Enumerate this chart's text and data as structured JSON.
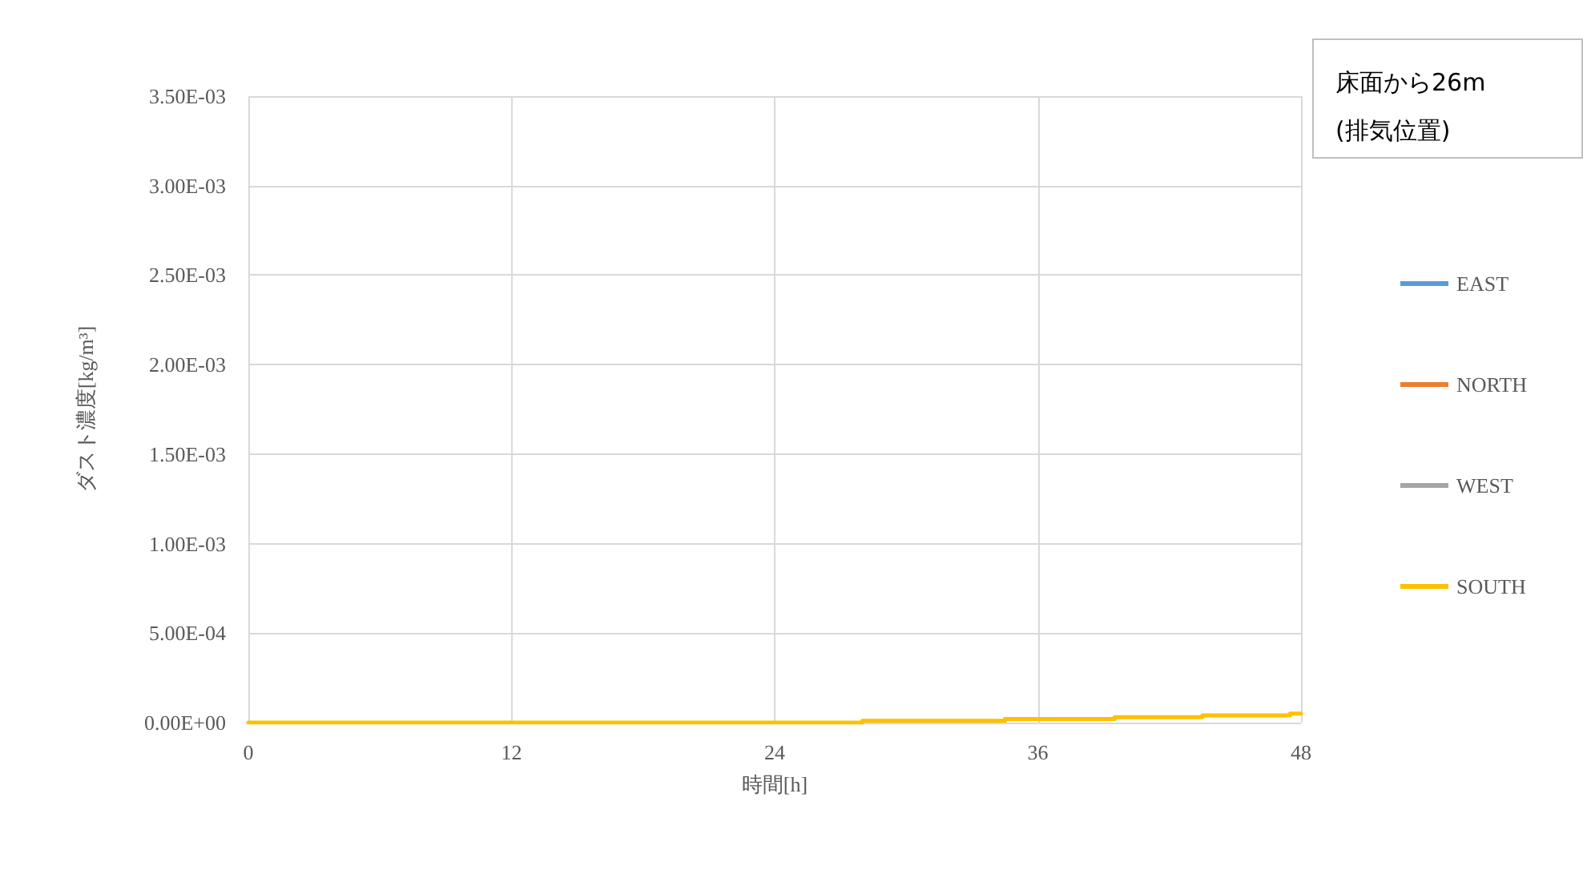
{
  "chart_data": {
    "type": "step",
    "xlabel": "時間[h]",
    "ylabel": "ダスト濃度[kg/m³]",
    "annotations": [
      "床面から26m\n(排気位置)"
    ],
    "series": [
      {
        "name": "EAST",
        "color": "#5b9bd5",
        "values": [
          null,
          null,
          null,
          null,
          null,
          null,
          null
        ]
      },
      {
        "name": "NORTH",
        "color": "#ed7d31",
        "values": [
          null,
          null,
          null,
          null,
          null,
          null,
          null
        ]
      },
      {
        "name": "WEST",
        "color": "#a5a5a5",
        "values": [
          null,
          null,
          null,
          null,
          null,
          null,
          null
        ]
      },
      {
        "name": "SOUTH",
        "color": "#ffc000",
        "x": [
          0,
          28,
          34.5,
          39.5,
          43.5,
          47.5,
          48
        ],
        "values": [
          0,
          1e-05,
          2e-05,
          3e-05,
          4e-05,
          5e-05,
          5e-05
        ]
      }
    ],
    "xlim": [
      0,
      48
    ],
    "xticks": [
      0,
      12,
      24,
      36,
      48
    ],
    "ylim": [
      0,
      0.0035
    ],
    "yticks": [
      {
        "value": 0,
        "label": "0.00E+00"
      },
      {
        "value": 0.0005,
        "label": "5.00E-04"
      },
      {
        "value": 0.001,
        "label": "1.00E-03"
      },
      {
        "value": 0.0015,
        "label": "1.50E-03"
      },
      {
        "value": 0.002,
        "label": "2.00E-03"
      },
      {
        "value": 0.0025,
        "label": "2.50E-03"
      },
      {
        "value": 0.003,
        "label": "3.00E-03"
      },
      {
        "value": 0.0035,
        "label": "3.50E-03"
      }
    ],
    "grid": true,
    "legend": "right",
    "marker": "none",
    "line_style": "solid"
  }
}
